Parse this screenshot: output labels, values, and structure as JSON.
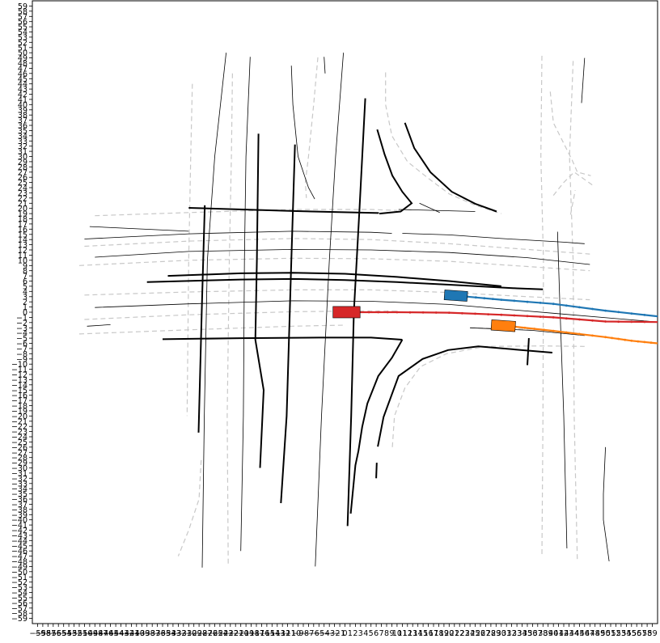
{
  "axes": {
    "x_range": [
      -60,
      60
    ],
    "y_range": [
      -60,
      60
    ],
    "x_ticks_from": -59,
    "x_ticks_to": 59,
    "y_ticks_from": -59,
    "y_ticks_to": 59
  },
  "colors": {
    "ego": "#d62728",
    "agent_blue": "#1f77b4",
    "agent_orange": "#ff7f0e",
    "road_edge": "#000000",
    "lane_marking": "#c8c8c8"
  },
  "vehicles": [
    {
      "id": "ego",
      "color": "#d62728",
      "x": 0.3,
      "y": 0.0,
      "length": 5.2,
      "width": 2.2,
      "heading_deg": 0
    },
    {
      "id": "agent-blue",
      "color": "#1f77b4",
      "x": 21.3,
      "y": 3.2,
      "length": 4.4,
      "width": 1.9,
      "heading_deg": -4
    },
    {
      "id": "agent-orange",
      "color": "#ff7f0e",
      "x": 30.4,
      "y": -2.6,
      "length": 4.6,
      "width": 2.0,
      "heading_deg": -4
    }
  ],
  "trajectories": [
    {
      "id": "ego-trajectory",
      "color": "#d62728",
      "points": [
        [
          2.8,
          0
        ],
        [
          10,
          0
        ],
        [
          20,
          -0.1
        ],
        [
          30,
          -0.5
        ],
        [
          40,
          -1.0
        ],
        [
          50,
          -1.8
        ],
        [
          60,
          -1.9
        ]
      ]
    },
    {
      "id": "blue-trajectory",
      "color": "#1f77b4",
      "points": [
        [
          23.5,
          3.0
        ],
        [
          30,
          2.4
        ],
        [
          40,
          1.6
        ],
        [
          50,
          0.3
        ],
        [
          60,
          -0.8
        ]
      ]
    },
    {
      "id": "orange-trajectory",
      "color": "#ff7f0e",
      "points": [
        [
          32.7,
          -2.8
        ],
        [
          40,
          -3.6
        ],
        [
          50,
          -4.8
        ],
        [
          55,
          -5.5
        ],
        [
          60,
          -6.0
        ]
      ]
    }
  ],
  "road_edges_thick": [
    [
      [
        -30,
        20.1
      ],
      [
        -10,
        19.5
      ],
      [
        6.5,
        19.1
      ]
    ],
    [
      [
        -34,
        7.0
      ],
      [
        -20,
        7.5
      ],
      [
        -10,
        7.6
      ],
      [
        0,
        7.4
      ],
      [
        10,
        6.8
      ],
      [
        20,
        6.0
      ],
      [
        30,
        5.0
      ]
    ],
    [
      [
        -38,
        5.8
      ],
      [
        -20,
        6.3
      ],
      [
        -10,
        6.4
      ],
      [
        0,
        6.2
      ],
      [
        10,
        5.8
      ],
      [
        20,
        5.3
      ],
      [
        33,
        4.6
      ],
      [
        38,
        4.4
      ]
    ],
    [
      [
        -35,
        -5.2
      ],
      [
        -20,
        -5.0
      ],
      [
        -5,
        -4.9
      ],
      [
        5,
        -4.9
      ],
      [
        11,
        -5.3
      ]
    ],
    [
      [
        -26.9,
        20.6
      ],
      [
        -27.5,
        0
      ],
      [
        -28.1,
        -23.2
      ]
    ],
    [
      [
        -16.6,
        34.4
      ],
      [
        -16.9,
        10
      ],
      [
        -17.2,
        -5.3
      ],
      [
        -15.6,
        -15.0
      ],
      [
        -16.3,
        -30.0
      ]
    ],
    [
      [
        -9.6,
        32.3
      ],
      [
        -10.3,
        10
      ],
      [
        -11.2,
        -20
      ],
      [
        -12.3,
        -36.8
      ]
    ],
    [
      [
        3.9,
        41.2
      ],
      [
        2.8,
        20
      ],
      [
        1.7,
        0
      ],
      [
        1.2,
        -20
      ],
      [
        0.5,
        -41.2
      ]
    ],
    [
      [
        6.2,
        35.2
      ],
      [
        7.6,
        30.4
      ],
      [
        9.1,
        26.3
      ],
      [
        11.0,
        23.2
      ],
      [
        12.8,
        21.0
      ],
      [
        10.7,
        19.4
      ],
      [
        6.6,
        19.0
      ]
    ],
    [
      [
        11.5,
        36.5
      ],
      [
        13.3,
        31.6
      ],
      [
        16.4,
        27.0
      ],
      [
        20.5,
        23.2
      ],
      [
        25.0,
        20.9
      ],
      [
        29.1,
        19.4
      ]
    ],
    [
      [
        11,
        -5.3
      ],
      [
        9.0,
        -8.8
      ],
      [
        6.4,
        -12.3
      ],
      [
        4.3,
        -17.6
      ],
      [
        3.3,
        -22.1
      ],
      [
        2.6,
        -26.7
      ],
      [
        2.0,
        -29.5
      ],
      [
        1.1,
        -38.8
      ]
    ],
    [
      [
        6.1,
        -29.0
      ],
      [
        6.0,
        -32.0
      ]
    ],
    [
      [
        6.3,
        -25.9
      ],
      [
        7.4,
        -20.2
      ],
      [
        10.3,
        -12.3
      ],
      [
        14.9,
        -9.0
      ],
      [
        19.8,
        -7.3
      ],
      [
        25.6,
        -6.6
      ],
      [
        39.8,
        -7.8
      ]
    ],
    [
      [
        35.3,
        -5.0
      ],
      [
        35.0,
        -10.2
      ]
    ]
  ],
  "road_edges_thin": [
    [
      [
        -50,
        14.1
      ],
      [
        -30,
        15.1
      ],
      [
        -10,
        15.6
      ],
      [
        5,
        15.4
      ],
      [
        9,
        15.2
      ]
    ],
    [
      [
        11,
        15.2
      ],
      [
        20,
        14.9
      ],
      [
        30,
        14.2
      ],
      [
        42,
        13.5
      ],
      [
        46,
        13.2
      ]
    ],
    [
      [
        -48,
        10.6
      ],
      [
        -30,
        11.7
      ],
      [
        -10,
        12.1
      ],
      [
        5,
        12.0
      ],
      [
        20,
        11.5
      ],
      [
        35,
        10.5
      ],
      [
        47,
        9.2
      ]
    ],
    [
      [
        -48,
        0.9
      ],
      [
        -30,
        1.6
      ],
      [
        -10,
        2.2
      ],
      [
        5,
        2.1
      ],
      [
        20,
        1.5
      ],
      [
        40,
        -0.2
      ],
      [
        60,
        -1.9
      ]
    ],
    [
      [
        -49.5,
        -2.7
      ],
      [
        -45,
        -2.4
      ]
    ],
    [
      [
        -22.8,
        50
      ],
      [
        -25.0,
        30
      ],
      [
        -26.4,
        10
      ],
      [
        -27.0,
        -20
      ],
      [
        -27.4,
        -49.2
      ]
    ],
    [
      [
        -18.2,
        49.2
      ],
      [
        -19.0,
        30
      ],
      [
        -19.3,
        10
      ],
      [
        -19.5,
        -20
      ],
      [
        -20.0,
        -46
      ]
    ],
    [
      [
        -4,
        49.2
      ],
      [
        -3.8,
        46
      ]
    ],
    [
      [
        -10.3,
        47.5
      ],
      [
        -10,
        40
      ],
      [
        -9,
        30
      ],
      [
        -7,
        24
      ],
      [
        -5.8,
        21.8
      ]
    ],
    [
      [
        -0.3,
        50
      ],
      [
        -1.8,
        30
      ],
      [
        -3.0,
        10
      ],
      [
        -4.5,
        -20
      ],
      [
        -5.7,
        -49
      ]
    ],
    [
      [
        40.8,
        15.5
      ],
      [
        41.3,
        0
      ],
      [
        42.0,
        -20
      ],
      [
        42.6,
        -45.5
      ]
    ],
    [
      [
        46,
        49.0
      ],
      [
        45.4,
        40.3
      ]
    ],
    [
      [
        50,
        -26
      ],
      [
        49.6,
        -35
      ],
      [
        49.6,
        -40
      ],
      [
        50.7,
        -48
      ]
    ],
    [
      [
        24,
        -3.0
      ],
      [
        36,
        -3.5
      ],
      [
        46,
        -4.5
      ]
    ],
    [
      [
        10.3,
        19.8
      ],
      [
        25,
        19.4
      ]
    ],
    [
      [
        14.3,
        21
      ],
      [
        18.2,
        19.2
      ]
    ],
    [
      [
        -49.0,
        16.5
      ],
      [
        -30,
        15.6
      ]
    ]
  ],
  "lane_markings": [
    [
      [
        -48,
        18.6
      ],
      [
        -30,
        19.2
      ],
      [
        -10,
        19.8
      ],
      [
        5,
        19.8
      ],
      [
        10,
        19.6
      ]
    ],
    [
      [
        -50,
        12.7
      ],
      [
        -30,
        13.7
      ],
      [
        -10,
        14.2
      ],
      [
        5,
        14.0
      ],
      [
        20,
        13.2
      ],
      [
        35,
        12.1
      ],
      [
        47,
        11.2
      ]
    ],
    [
      [
        -51,
        9.0
      ],
      [
        -30,
        10.0
      ],
      [
        -10,
        10.4
      ],
      [
        5,
        10.3
      ],
      [
        20,
        9.8
      ],
      [
        35,
        8.8
      ],
      [
        47,
        8.0
      ]
    ],
    [
      [
        -50,
        3.3
      ],
      [
        -30,
        3.9
      ],
      [
        -10,
        4.3
      ],
      [
        5,
        4.3
      ],
      [
        20,
        3.8
      ],
      [
        35,
        3.0
      ],
      [
        47,
        2.4
      ]
    ],
    [
      [
        -50,
        -1.4
      ],
      [
        -30,
        -0.5
      ],
      [
        -10,
        0.1
      ],
      [
        0,
        0.2
      ],
      [
        10,
        0.2
      ]
    ],
    [
      [
        -51,
        -4.2
      ],
      [
        -30,
        -3.4
      ],
      [
        -10,
        -2.7
      ],
      [
        0,
        -2.5
      ]
    ],
    [
      [
        -29.3,
        44
      ],
      [
        -29.6,
        30
      ],
      [
        -30.0,
        10
      ],
      [
        -30.3,
        -20
      ]
    ],
    [
      [
        -21.6,
        46
      ],
      [
        -21.8,
        30
      ],
      [
        -22.2,
        10
      ],
      [
        -22.6,
        -20
      ],
      [
        -22.4,
        -49
      ]
    ],
    [
      [
        -27.6,
        -28.5
      ],
      [
        -28,
        -36
      ],
      [
        -30,
        -42
      ],
      [
        -32,
        -47
      ]
    ],
    [
      [
        -5.2,
        49.1
      ],
      [
        -6.0,
        40
      ],
      [
        -7.0,
        30
      ],
      [
        -7.6,
        25
      ],
      [
        -7.4,
        22
      ]
    ],
    [
      [
        7.8,
        46.2
      ],
      [
        7.8,
        40
      ],
      [
        9.0,
        34
      ],
      [
        12,
        29
      ],
      [
        16,
        25.8
      ],
      [
        20,
        22.8
      ],
      [
        25,
        20.6
      ],
      [
        30,
        19.0
      ]
    ],
    [
      [
        37.8,
        49.4
      ],
      [
        37.6,
        30
      ],
      [
        38.1,
        10
      ],
      [
        38.0,
        -20
      ],
      [
        37.8,
        -47
      ]
    ],
    [
      [
        43.8,
        48.4
      ],
      [
        43.1,
        30
      ],
      [
        43.8,
        10
      ],
      [
        44.0,
        -20
      ],
      [
        44.6,
        -48
      ]
    ],
    [
      [
        39.4,
        42.5
      ],
      [
        40.0,
        36.5
      ],
      [
        43.6,
        29.3
      ],
      [
        44.6,
        27.0
      ],
      [
        47.2,
        26.3
      ]
    ],
    [
      [
        40,
        22.5
      ],
      [
        42.0,
        25.0
      ],
      [
        44.0,
        27.0
      ],
      [
        47.5,
        24.5
      ]
    ],
    [
      [
        43.3,
        18.8
      ],
      [
        44.2,
        23.5
      ]
    ],
    [
      [
        9.1,
        -26.0
      ],
      [
        9.5,
        -20
      ],
      [
        11.5,
        -14.6
      ],
      [
        14.5,
        -10.5
      ],
      [
        19.5,
        -8.0
      ],
      [
        27,
        -6.6
      ],
      [
        38,
        -6.5
      ],
      [
        46,
        -6.6
      ]
    ],
    [
      [
        24,
        -3.0
      ],
      [
        36,
        -3.3
      ]
    ]
  ]
}
